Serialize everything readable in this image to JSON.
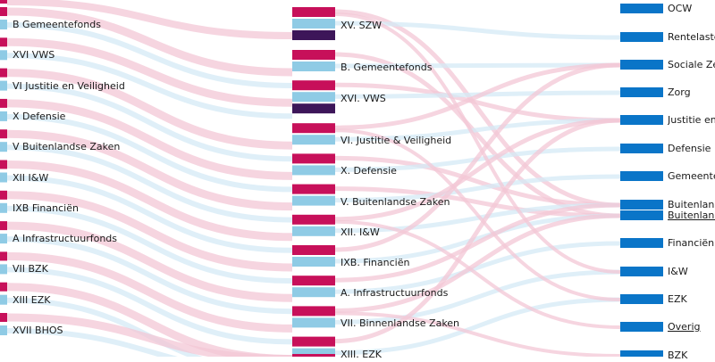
{
  "colors": {
    "outgoing": "#c7105a",
    "incoming": "#8fcbe5",
    "saldo": "#3d1659",
    "theme": "#0a75c8",
    "flow_pink": "#f3c7d6",
    "flow_blue": "#d4eaf5"
  },
  "left_column": [
    "B Gemeentefonds",
    "XVI VWS",
    "VI Justitie en Veiligheid",
    "X Defensie",
    "V Buitenlandse Zaken",
    "XII I&W",
    "IXB Financiën",
    "A Infrastructuurfonds",
    "VII BZK",
    "XIII EZK",
    "XVII BHOS"
  ],
  "middle_column": [
    {
      "label": "XV. SZW",
      "saldo": true
    },
    {
      "label": "B. Gemeentefonds",
      "saldo": false
    },
    {
      "label": "XVI. VWS",
      "saldo": true
    },
    {
      "label": "VI. Justitie & Veiligheid",
      "saldo": false
    },
    {
      "label": "X. Defensie",
      "saldo": false
    },
    {
      "label": "V. Buitenlandse Zaken",
      "saldo": false
    },
    {
      "label": "XII. I&W",
      "saldo": false
    },
    {
      "label": "IXB. Financiën",
      "saldo": false
    },
    {
      "label": "A. Infrastructuurfonds",
      "saldo": false
    },
    {
      "label": "VII. Binnenlandse Zaken",
      "saldo": false
    },
    {
      "label": "XIII. EZK",
      "saldo": false
    }
  ],
  "right_column": [
    {
      "label": "OCW",
      "link": false
    },
    {
      "label": "Rentelasten",
      "link": false
    },
    {
      "label": "Sociale Zekerheid",
      "link": false
    },
    {
      "label": "Zorg",
      "link": false
    },
    {
      "label": "Justitie en Veiligheid",
      "link": false
    },
    {
      "label": "Defensie",
      "link": false
    },
    {
      "label": "Gemeentefonds",
      "link": false
    },
    {
      "label": "Buitenlandse Zaken",
      "link": false
    },
    {
      "label": "Buitenlandse Handel",
      "link": true
    },
    {
      "label": "Financiën",
      "link": false
    },
    {
      "label": "I&W",
      "link": false
    },
    {
      "label": "EZK",
      "link": false
    },
    {
      "label": "Overig",
      "link": true
    },
    {
      "label": "BZK",
      "link": false
    }
  ]
}
